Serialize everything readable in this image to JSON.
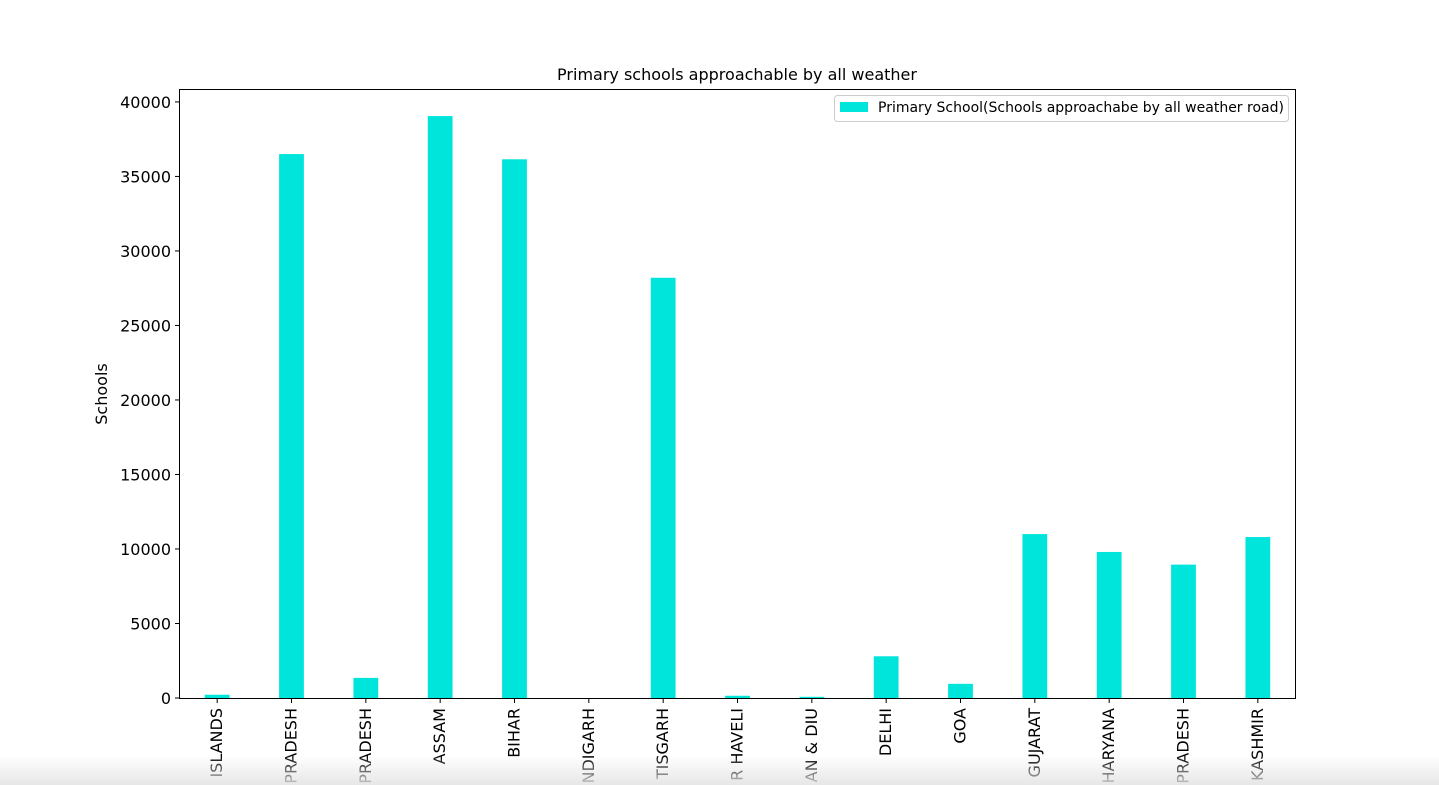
{
  "chart_data": {
    "type": "bar",
    "title": "Primary schools approachable by all weather",
    "xlabel": "",
    "ylabel": "Schools",
    "ylim": [
      0,
      41000
    ],
    "yticks": [
      0,
      5000,
      10000,
      15000,
      20000,
      25000,
      30000,
      35000,
      40000
    ],
    "categories": [
      "ISLANDS",
      "PRADESH",
      "PRADESH",
      "ASSAM",
      "BIHAR",
      "NDIGARH",
      "TISGARH",
      "R HAVELI",
      "AN & DIU",
      "DELHI",
      "GOA",
      "GUJARAT",
      "HARYANA",
      "PRADESH",
      "KASHMIR"
    ],
    "series": [
      {
        "name": "Primary School(Schools approachabe by all weather road)",
        "color": "#00e5db",
        "values": [
          220,
          36500,
          1350,
          39050,
          36150,
          0,
          28200,
          150,
          80,
          2800,
          950,
          11000,
          9800,
          8950,
          10800
        ]
      }
    ],
    "grid": false,
    "legend_position": "top-right"
  }
}
